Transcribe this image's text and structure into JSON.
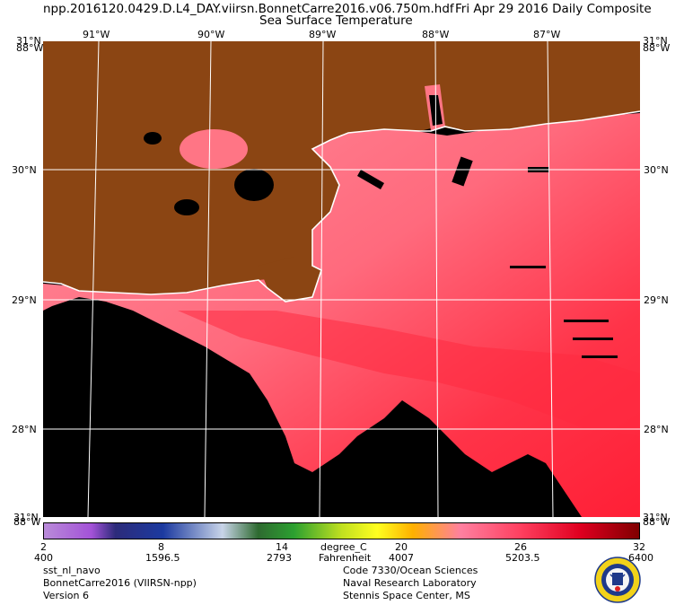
{
  "header": {
    "filename": "npp.2016120.0429.D.L4_DAY.viirsn.BonnetCarre2016.v06.750m.hdf",
    "composite": "Fri Apr 29 2016 Daily Composite",
    "product": "Sea Surface Temperature"
  },
  "map": {
    "lon_labels": [
      "91°W",
      "90°W",
      "89°W",
      "88°W",
      "87°W"
    ],
    "lat_labels": [
      "30°N",
      "29°N",
      "28°N"
    ],
    "corner_top_left": "31°N",
    "corner_top_right": "31°N",
    "corner_bottom_left": "88°W",
    "corner_bottom_right": "88°W",
    "extent": {
      "lon_min": -91.5,
      "lon_max": -86.5,
      "lat_min": 27.3,
      "lat_max": 31.0
    },
    "colors": {
      "land": "#8B4513",
      "no_data": "#000000",
      "coast": "#ffffff",
      "sst_warm": "#ff7585",
      "sst_hot": "#ff1a33"
    }
  },
  "colorbar": {
    "unit_primary": "degree_C",
    "unit_secondary": "Fahrenheit",
    "celsius_ticks": [
      "2",
      "8",
      "14",
      "20",
      "26",
      "32"
    ],
    "fahrenheit_ticks": [
      "400",
      "1596.5",
      "2793",
      "4007",
      "5203.5",
      "6400"
    ]
  },
  "footer": {
    "product_name": "sst_nl_navo",
    "region": "BonnetCarre2016 (VIIRSN-npp)",
    "version": "Version 6",
    "org_line1": "Code 7330/Ocean Sciences",
    "org_line2": "Naval Research Laboratory",
    "org_line3": "Stennis Space Center, MS"
  }
}
